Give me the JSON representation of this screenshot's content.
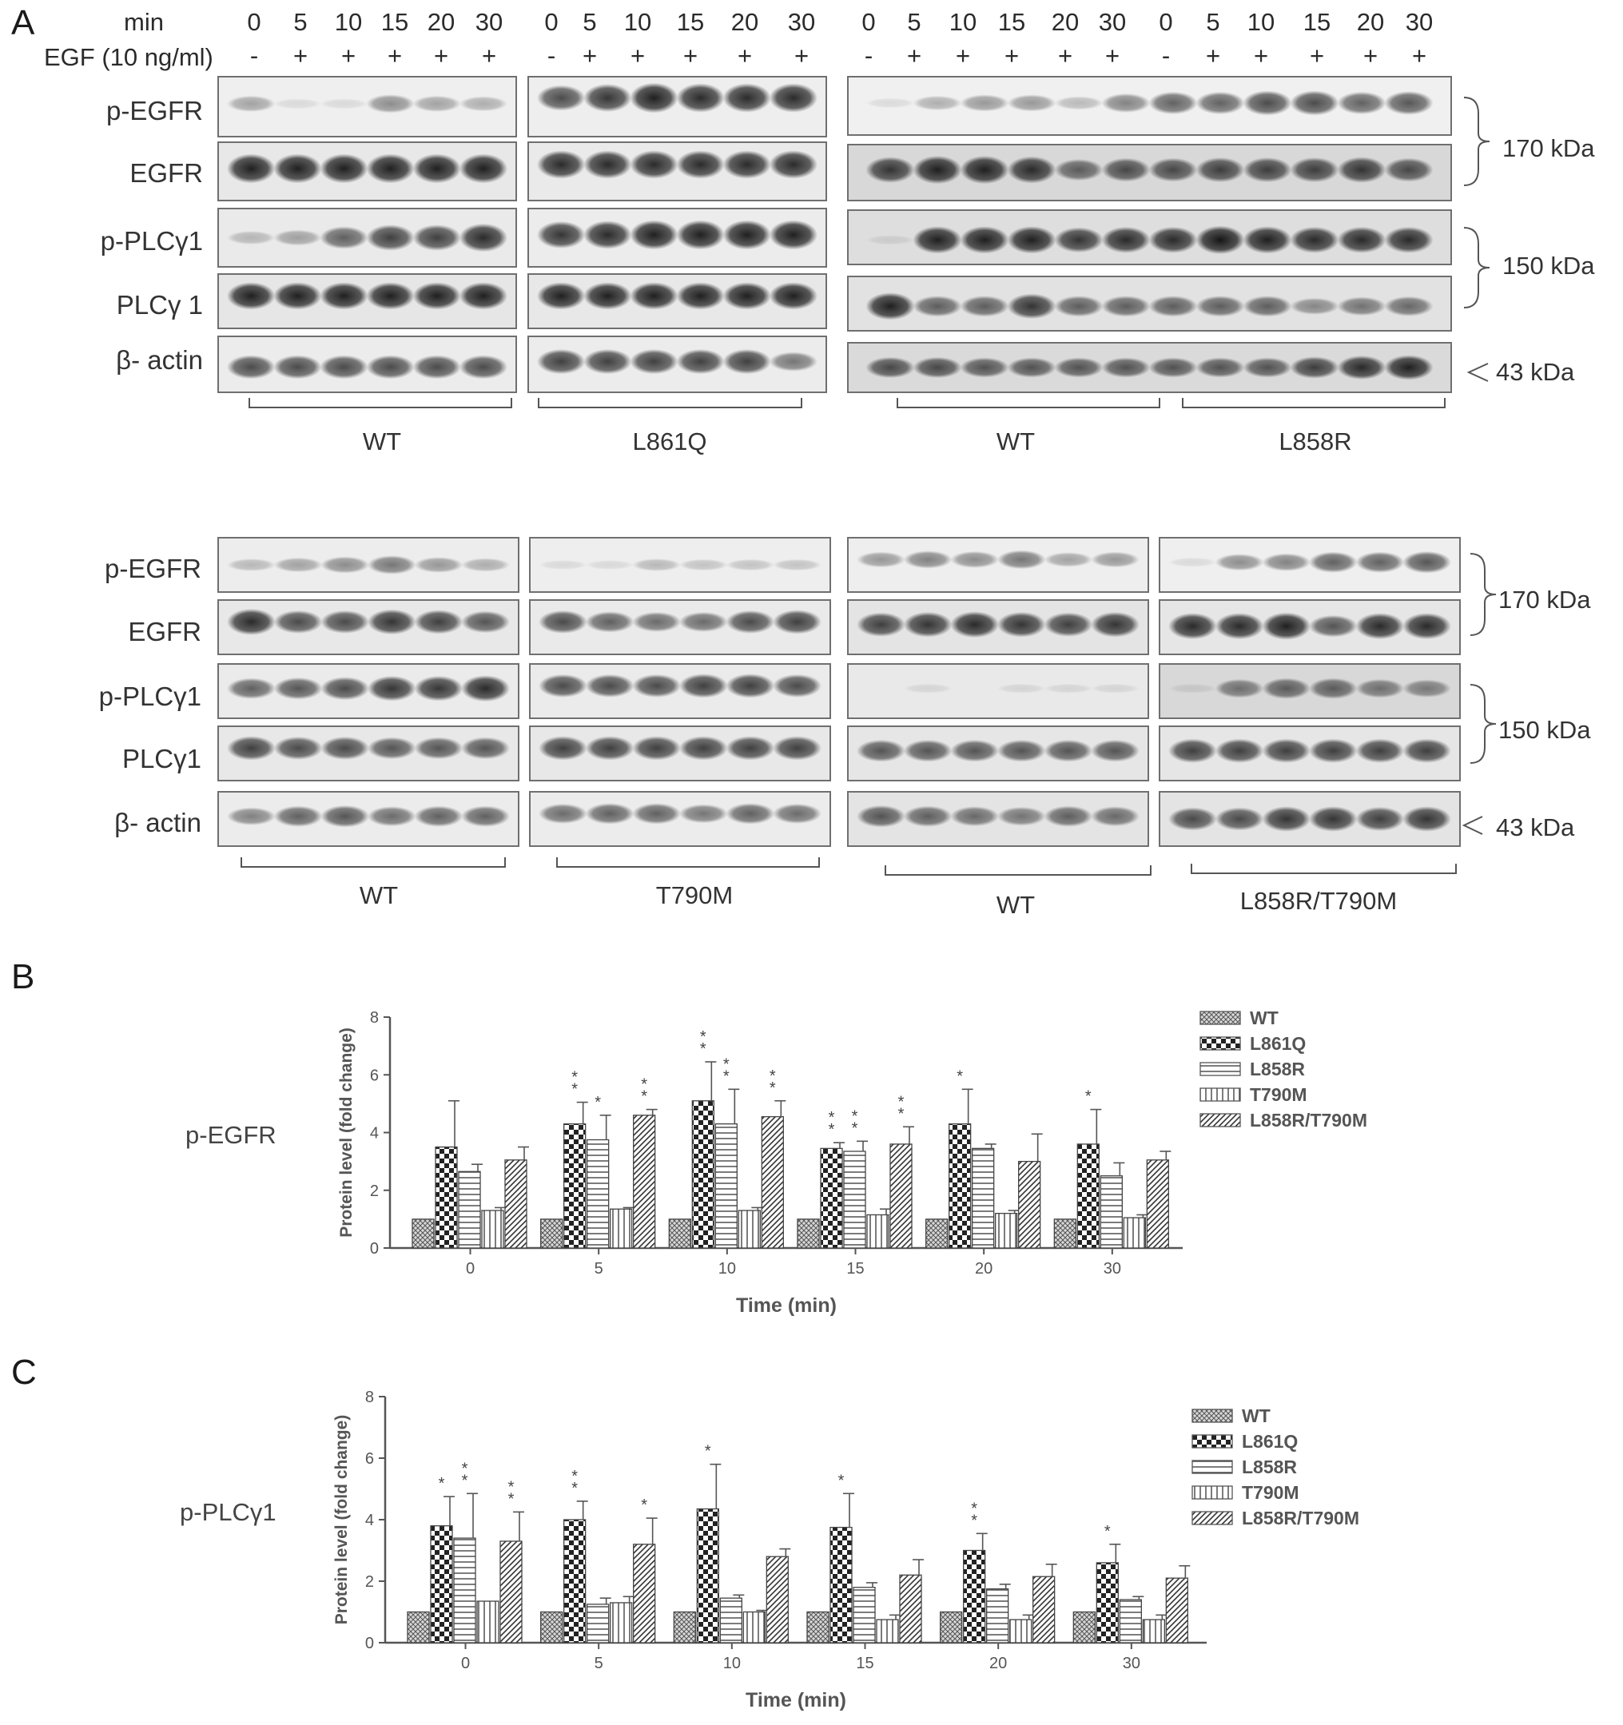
{
  "panel_a": {
    "letter": "A",
    "header_top": {
      "min_label": "min",
      "egf_label": "EGF (10 ng/ml)",
      "times": [
        "0",
        "5",
        "10",
        "15",
        "20",
        "30"
      ],
      "signs": [
        "-",
        "+",
        "+",
        "+",
        "+",
        "+"
      ]
    },
    "row_labels_top": [
      "p-EGFR",
      "EGFR",
      "p-PLCγ1",
      "PLCγ 1",
      "β- actin"
    ],
    "row_labels_bottom": [
      "p-EGFR",
      "EGFR",
      "p-PLCγ1",
      "PLCγ1",
      "β- actin"
    ],
    "groups_top": [
      "WT",
      "L861Q",
      "WT",
      "L858R"
    ],
    "groups_bottom": [
      "WT",
      "T790M",
      "WT",
      "L858R/T790M"
    ],
    "kda_top": [
      "170 kDa",
      "150 kDa",
      "43 kDa"
    ],
    "kda_bottom": [
      "170 kDa",
      "150 kDa",
      "43 kDa"
    ]
  },
  "panel_b": {
    "letter": "B",
    "side_label": "p-EGFR",
    "chart_data": {
      "type": "bar",
      "categories": [
        "0",
        "5",
        "10",
        "15",
        "20",
        "30"
      ],
      "series": [
        {
          "name": "WT",
          "values": [
            1,
            1,
            1,
            1,
            1,
            1
          ],
          "errors": [
            0,
            0,
            0,
            0,
            0,
            0
          ]
        },
        {
          "name": "L861Q",
          "values": [
            3.5,
            4.3,
            5.1,
            3.45,
            4.3,
            3.6
          ],
          "errors": [
            1.6,
            0.75,
            1.35,
            0.2,
            1.2,
            1.2
          ]
        },
        {
          "name": "L858R",
          "values": [
            2.65,
            3.75,
            4.3,
            3.35,
            3.45,
            2.5
          ],
          "errors": [
            0.25,
            0.85,
            1.2,
            0.35,
            0.15,
            0.45
          ]
        },
        {
          "name": "T790M",
          "values": [
            1.3,
            1.35,
            1.3,
            1.15,
            1.2,
            1.05
          ],
          "errors": [
            0.1,
            0.05,
            0.1,
            0.2,
            0.1,
            0.1
          ]
        },
        {
          "name": "L858R/T790M",
          "values": [
            3.05,
            4.6,
            4.55,
            3.6,
            3.0,
            3.05
          ],
          "errors": [
            0.45,
            0.2,
            0.55,
            0.6,
            0.95,
            0.3
          ]
        }
      ],
      "significance": [
        [
          "",
          "",
          "",
          "",
          ""
        ],
        [
          "",
          "**",
          "*",
          "",
          "**"
        ],
        [
          "",
          "**",
          "**",
          "",
          "**"
        ],
        [
          "",
          "**",
          "**",
          "",
          "**"
        ],
        [
          "",
          "*",
          "",
          "",
          ""
        ],
        [
          "",
          "*",
          "",
          "",
          ""
        ]
      ],
      "xlabel": "Time (min)",
      "ylabel": "Protein level (fold change)",
      "ylim": [
        0,
        8
      ],
      "yticks": [
        "0",
        "2",
        "4",
        "6",
        "8"
      ],
      "legend_position": "right"
    }
  },
  "panel_c": {
    "letter": "C",
    "side_label": "p-PLCγ1",
    "chart_data": {
      "type": "bar",
      "categories": [
        "0",
        "5",
        "10",
        "15",
        "20",
        "30"
      ],
      "series": [
        {
          "name": "WT",
          "values": [
            1,
            1,
            1,
            1,
            1,
            1
          ],
          "errors": [
            0,
            0,
            0,
            0,
            0,
            0
          ]
        },
        {
          "name": "L861Q",
          "values": [
            3.8,
            4.0,
            4.35,
            3.75,
            3.0,
            2.6
          ],
          "errors": [
            0.95,
            0.6,
            1.45,
            1.1,
            0.55,
            0.6
          ]
        },
        {
          "name": "L858R",
          "values": [
            3.4,
            1.25,
            1.45,
            1.8,
            1.75,
            1.4
          ],
          "errors": [
            1.45,
            0.2,
            0.1,
            0.15,
            0.15,
            0.1
          ]
        },
        {
          "name": "T790M",
          "values": [
            1.35,
            1.3,
            1.0,
            0.75,
            0.75,
            0.75
          ],
          "errors": [
            0.0,
            0.2,
            0.05,
            0.15,
            0.15,
            0.15
          ]
        },
        {
          "name": "L858R/T790M",
          "values": [
            3.3,
            3.2,
            2.8,
            2.2,
            2.15,
            2.1
          ],
          "errors": [
            0.95,
            0.85,
            0.25,
            0.5,
            0.4,
            0.4
          ]
        }
      ],
      "significance": [
        [
          "",
          "*",
          "**",
          "",
          "**"
        ],
        [
          "",
          "**",
          "",
          "",
          "*"
        ],
        [
          "",
          "*",
          "",
          "",
          ""
        ],
        [
          "",
          "*",
          "",
          "",
          ""
        ],
        [
          "",
          "**",
          "",
          "",
          ""
        ],
        [
          "",
          "*",
          "",
          "",
          ""
        ]
      ],
      "xlabel": "Time (min)",
      "ylabel": "Protein level (fold change)",
      "ylim": [
        0,
        8
      ],
      "yticks": [
        "0",
        "2",
        "4",
        "6",
        "8"
      ],
      "legend_position": "right"
    }
  }
}
